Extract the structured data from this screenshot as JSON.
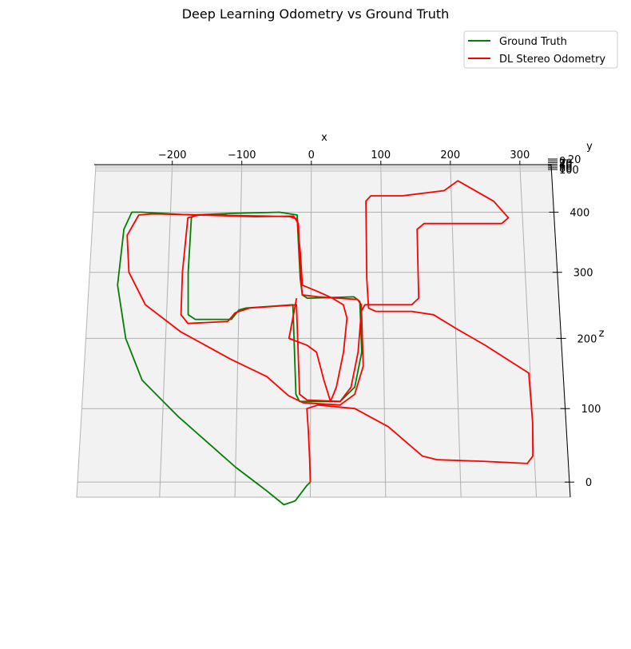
{
  "chart_data": {
    "type": "line",
    "title": "Deep Learning Odometry vs Ground Truth",
    "xlabel": "x",
    "ylabel": "y",
    "zlabel": "z",
    "x_ticks": [
      "−200",
      "−100",
      "0",
      "100",
      "200",
      "300"
    ],
    "z_ticks": [
      "0",
      "100",
      "200",
      "300",
      "400"
    ],
    "y_ticks": [
      "−20",
      "0",
      "20",
      "40",
      "60",
      "80",
      "100"
    ],
    "xlim": [
      -310,
      345
    ],
    "zlim": [
      -20,
      500
    ],
    "grid": true,
    "legend": "top-right",
    "series": [
      {
        "name": "Ground Truth",
        "color": "#008000",
        "points": [
          [
            0,
            0
          ],
          [
            -5,
            -5
          ],
          [
            -20,
            -25
          ],
          [
            -35,
            -30
          ],
          [
            -60,
            -10
          ],
          [
            -100,
            20
          ],
          [
            -180,
            90
          ],
          [
            -230,
            140
          ],
          [
            -255,
            200
          ],
          [
            -270,
            280
          ],
          [
            -265,
            370
          ],
          [
            -255,
            400
          ],
          [
            -240,
            400
          ],
          [
            -170,
            395
          ],
          [
            -110,
            398
          ],
          [
            -45,
            400
          ],
          [
            -35,
            398
          ],
          [
            -20,
            395
          ],
          [
            -18,
            350
          ],
          [
            -15,
            290
          ],
          [
            -12,
            265
          ],
          [
            -5,
            260
          ],
          [
            60,
            262
          ],
          [
            68,
            255
          ],
          [
            70,
            180
          ],
          [
            60,
            130
          ],
          [
            40,
            110
          ],
          [
            -15,
            110
          ],
          [
            -20,
            120
          ],
          [
            -25,
            250
          ],
          [
            -90,
            245
          ],
          [
            -100,
            242
          ],
          [
            -110,
            228
          ],
          [
            -160,
            228
          ],
          [
            -170,
            235
          ],
          [
            -172,
            300
          ],
          [
            -170,
            390
          ],
          [
            -165,
            395
          ],
          [
            -120,
            397
          ]
        ]
      },
      {
        "name": "DL Stereo Odometry",
        "color": "#ff0000",
        "points": [
          [
            0,
            0
          ],
          [
            -1,
            30
          ],
          [
            -3,
            70
          ],
          [
            -5,
            100
          ],
          [
            10,
            105
          ],
          [
            60,
            100
          ],
          [
            105,
            75
          ],
          [
            150,
            35
          ],
          [
            170,
            30
          ],
          [
            230,
            28
          ],
          [
            290,
            25
          ],
          [
            298,
            35
          ],
          [
            300,
            80
          ],
          [
            298,
            150
          ],
          [
            240,
            190
          ],
          [
            200,
            215
          ],
          [
            170,
            235
          ],
          [
            140,
            240
          ],
          [
            90,
            240
          ],
          [
            80,
            245
          ],
          [
            78,
            290
          ],
          [
            78,
            420
          ],
          [
            85,
            430
          ],
          [
            130,
            430
          ],
          [
            190,
            440
          ],
          [
            210,
            460
          ],
          [
            260,
            420
          ],
          [
            280,
            390
          ],
          [
            270,
            380
          ],
          [
            215,
            380
          ],
          [
            160,
            380
          ],
          [
            150,
            370
          ],
          [
            150,
            260
          ],
          [
            140,
            250
          ],
          [
            75,
            250
          ],
          [
            70,
            240
          ],
          [
            65,
            180
          ],
          [
            55,
            130
          ],
          [
            40,
            110
          ],
          [
            -5,
            112
          ],
          [
            -15,
            120
          ],
          [
            -20,
            250
          ],
          [
            -85,
            245
          ],
          [
            -105,
            238
          ],
          [
            -115,
            225
          ],
          [
            -170,
            222
          ],
          [
            -180,
            235
          ],
          [
            -180,
            300
          ],
          [
            -175,
            390
          ],
          [
            -160,
            395
          ],
          [
            -80,
            392
          ],
          [
            -25,
            393
          ],
          [
            -18,
            380
          ],
          [
            -15,
            300
          ],
          [
            -12,
            265
          ],
          [
            10,
            262
          ],
          [
            65,
            258
          ],
          [
            70,
            250
          ],
          [
            72,
            160
          ],
          [
            60,
            120
          ],
          [
            40,
            105
          ],
          [
            -10,
            108
          ],
          [
            -30,
            118
          ],
          [
            -60,
            145
          ],
          [
            -110,
            170
          ],
          [
            -180,
            210
          ],
          [
            -230,
            250
          ],
          [
            -255,
            300
          ],
          [
            -260,
            360
          ],
          [
            -245,
            395
          ],
          [
            -225,
            397
          ],
          [
            -150,
            395
          ],
          [
            -60,
            393
          ],
          [
            -30,
            392
          ],
          [
            -20,
            388
          ],
          [
            -15,
            330
          ],
          [
            -12,
            280
          ],
          [
            10,
            270
          ],
          [
            30,
            260
          ],
          [
            45,
            250
          ],
          [
            50,
            230
          ],
          [
            45,
            180
          ],
          [
            35,
            130
          ],
          [
            27,
            110
          ],
          [
            18,
            140
          ],
          [
            8,
            180
          ],
          [
            -5,
            190
          ],
          [
            -30,
            200
          ],
          [
            -20,
            260
          ]
        ]
      }
    ]
  }
}
